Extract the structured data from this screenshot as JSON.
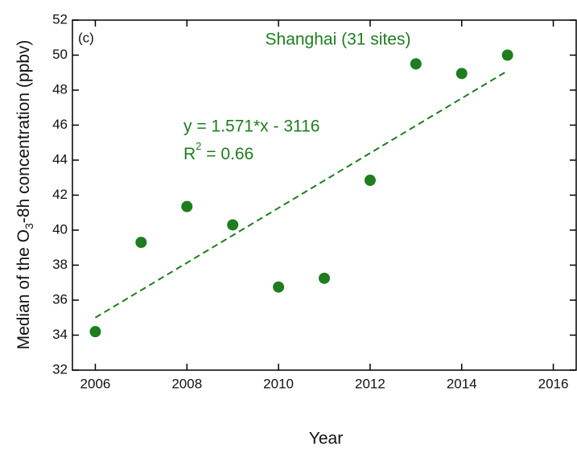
{
  "chart_data": {
    "type": "scatter",
    "panel_label": "(c)",
    "title": "Shanghai (31 sites)",
    "x_label": "Year",
    "y_label": [
      "Median of the O",
      "3",
      "-8h concentration (ppbv)"
    ],
    "equation": "y = 1.571*x - 3116",
    "r_squared": [
      "R",
      "2",
      " = 0.66"
    ],
    "xlim": [
      2005.5,
      2016.5
    ],
    "ylim": [
      32,
      52
    ],
    "xticks": [
      2006,
      2008,
      2010,
      2012,
      2014,
      2016
    ],
    "yticks": [
      32,
      34,
      36,
      38,
      40,
      42,
      44,
      46,
      48,
      50,
      52
    ],
    "series": [
      {
        "color": "#1e7d1e",
        "x": [
          2006,
          2007,
          2008,
          2009,
          2010,
          2011,
          2012,
          2013,
          2014,
          2015
        ],
        "values": [
          34.2,
          39.3,
          41.35,
          40.3,
          36.75,
          37.25,
          42.85,
          49.5,
          48.95,
          50.0
        ]
      }
    ],
    "trend": {
      "color": "#1e7d1e",
      "dashed": true,
      "x": [
        2006,
        2015
      ],
      "values": [
        35.0,
        49.1
      ]
    }
  }
}
